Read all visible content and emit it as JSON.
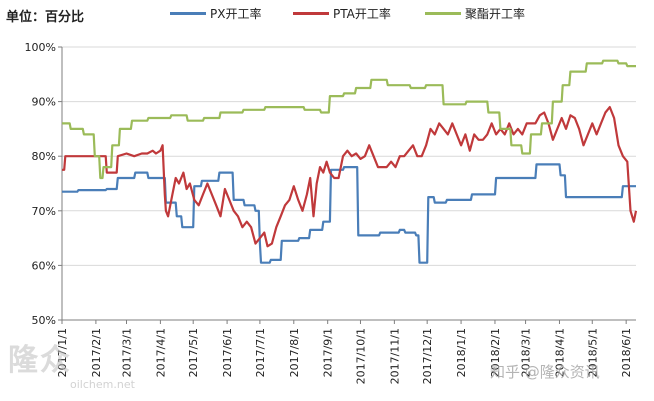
{
  "unit_label": "单位：百分比",
  "watermark": {
    "left_logo": "隆众",
    "left_url": "oilchem.net",
    "right": "知乎 @隆众资讯"
  },
  "colors": {
    "PX": "#4a7eb8",
    "PTA": "#c0393b",
    "POLY": "#9bbb59",
    "axis": "#7f7f7f"
  },
  "chart_data": {
    "type": "line",
    "title": "",
    "xlabel": "",
    "ylabel": "",
    "ylim": [
      50,
      100
    ],
    "yticks": [
      50,
      60,
      70,
      80,
      90,
      100
    ],
    "ytick_labels": [
      "50%",
      "60%",
      "70%",
      "80%",
      "90%",
      "100%"
    ],
    "xlim": [
      "2017-01-01",
      "2018-06-10"
    ],
    "xtick_labels": [
      "2017/1/1",
      "2017/2/1",
      "2017/3/1",
      "2017/4/1",
      "2017/5/1",
      "2017/6/1",
      "2017/7/1",
      "2017/8/1",
      "2017/9/1",
      "2017/10/1",
      "2017/11/1",
      "2017/12/1",
      "2018/1/1",
      "2018/2/1",
      "2018/3/1",
      "2018/4/1",
      "2018/5/1",
      "2018/6/1"
    ],
    "xtick_dates": [
      "2017-01-01",
      "2017-02-01",
      "2017-03-01",
      "2017-04-01",
      "2017-05-01",
      "2017-06-01",
      "2017-07-01",
      "2017-08-01",
      "2017-09-01",
      "2017-10-01",
      "2017-11-01",
      "2017-12-01",
      "2018-01-01",
      "2018-02-01",
      "2018-03-01",
      "2018-04-01",
      "2018-05-01",
      "2018-06-01"
    ],
    "legend_position": "top",
    "series": [
      {
        "name": "PX开工率",
        "color": "#4a7eb8",
        "x": [
          "2017-01-01",
          "2017-01-15",
          "2017-01-16",
          "2017-02-10",
          "2017-02-11",
          "2017-02-20",
          "2017-02-21",
          "2017-03-08",
          "2017-03-09",
          "2017-03-20",
          "2017-03-21",
          "2017-04-05",
          "2017-04-06",
          "2017-04-15",
          "2017-04-16",
          "2017-04-20",
          "2017-04-21",
          "2017-05-01",
          "2017-05-02",
          "2017-05-08",
          "2017-05-09",
          "2017-05-24",
          "2017-05-25",
          "2017-06-06",
          "2017-06-07",
          "2017-06-16",
          "2017-06-17",
          "2017-06-26",
          "2017-06-27",
          "2017-06-30",
          "2017-07-01",
          "2017-07-02",
          "2017-07-10",
          "2017-07-11",
          "2017-07-20",
          "2017-07-21",
          "2017-08-05",
          "2017-08-06",
          "2017-08-15",
          "2017-08-16",
          "2017-08-27",
          "2017-08-28",
          "2017-09-03",
          "2017-09-04",
          "2017-09-15",
          "2017-09-16",
          "2017-09-28",
          "2017-09-29",
          "2017-10-18",
          "2017-10-19",
          "2017-11-05",
          "2017-11-06",
          "2017-11-10",
          "2017-11-11",
          "2017-11-20",
          "2017-11-21",
          "2017-11-23",
          "2017-11-24",
          "2017-12-01",
          "2017-12-02",
          "2017-12-07",
          "2017-12-08",
          "2017-12-18",
          "2017-12-19",
          "2018-01-10",
          "2018-01-11",
          "2018-02-01",
          "2018-02-02",
          "2018-03-10",
          "2018-03-11",
          "2018-04-01",
          "2018-04-02",
          "2018-04-06",
          "2018-04-07",
          "2018-05-28",
          "2018-05-29",
          "2018-06-10"
        ],
        "values": [
          73.5,
          73.5,
          73.8,
          73.8,
          74.0,
          74.0,
          76.0,
          76.0,
          77.0,
          77.0,
          76.0,
          76.0,
          71.5,
          71.5,
          69.0,
          69.0,
          67.0,
          67.0,
          74.5,
          74.5,
          75.5,
          75.5,
          77.0,
          77.0,
          72.0,
          72.0,
          71.0,
          71.0,
          70.0,
          70.0,
          64.0,
          60.5,
          60.5,
          61.0,
          61.0,
          64.5,
          64.5,
          65.0,
          65.0,
          66.5,
          66.5,
          68.0,
          68.0,
          77.5,
          77.5,
          78.0,
          78.0,
          65.5,
          65.5,
          66.0,
          66.0,
          66.5,
          66.5,
          66.0,
          66.0,
          65.5,
          65.5,
          60.5,
          60.5,
          72.5,
          72.5,
          71.5,
          71.5,
          72.0,
          72.0,
          73.0,
          73.0,
          76.0,
          76.0,
          78.5,
          78.5,
          76.5,
          76.5,
          72.5,
          72.5,
          74.5,
          74.5
        ]
      },
      {
        "name": "PTA开工率",
        "color": "#c0393b",
        "x": [
          "2017-01-01",
          "2017-01-03",
          "2017-01-04",
          "2017-01-25",
          "2017-01-26",
          "2017-02-02",
          "2017-02-10",
          "2017-02-11",
          "2017-02-20",
          "2017-02-21",
          "2017-03-01",
          "2017-03-08",
          "2017-03-15",
          "2017-03-20",
          "2017-03-25",
          "2017-03-28",
          "2017-04-01",
          "2017-04-03",
          "2017-04-05",
          "2017-04-06",
          "2017-04-08",
          "2017-04-12",
          "2017-04-15",
          "2017-04-18",
          "2017-04-22",
          "2017-04-25",
          "2017-04-28",
          "2017-05-02",
          "2017-05-06",
          "2017-05-10",
          "2017-05-14",
          "2017-05-18",
          "2017-05-22",
          "2017-05-26",
          "2017-05-30",
          "2017-06-03",
          "2017-06-07",
          "2017-06-11",
          "2017-06-15",
          "2017-06-19",
          "2017-06-23",
          "2017-06-27",
          "2017-07-01",
          "2017-07-05",
          "2017-07-08",
          "2017-07-12",
          "2017-07-16",
          "2017-07-20",
          "2017-07-24",
          "2017-07-28",
          "2017-08-01",
          "2017-08-05",
          "2017-08-09",
          "2017-08-13",
          "2017-08-16",
          "2017-08-19",
          "2017-08-22",
          "2017-08-25",
          "2017-08-28",
          "2017-08-31",
          "2017-09-03",
          "2017-09-07",
          "2017-09-11",
          "2017-09-15",
          "2017-09-19",
          "2017-09-23",
          "2017-09-27",
          "2017-10-01",
          "2017-10-05",
          "2017-10-09",
          "2017-10-13",
          "2017-10-17",
          "2017-10-21",
          "2017-10-25",
          "2017-10-29",
          "2017-11-02",
          "2017-11-06",
          "2017-11-10",
          "2017-11-14",
          "2017-11-18",
          "2017-11-22",
          "2017-11-26",
          "2017-11-30",
          "2017-12-04",
          "2017-12-08",
          "2017-12-12",
          "2017-12-16",
          "2017-12-20",
          "2017-12-24",
          "2017-12-28",
          "2018-01-01",
          "2018-01-05",
          "2018-01-09",
          "2018-01-13",
          "2018-01-17",
          "2018-01-21",
          "2018-01-25",
          "2018-01-29",
          "2018-02-02",
          "2018-02-06",
          "2018-02-10",
          "2018-02-14",
          "2018-02-18",
          "2018-02-22",
          "2018-02-26",
          "2018-03-02",
          "2018-03-06",
          "2018-03-10",
          "2018-03-14",
          "2018-03-18",
          "2018-03-22",
          "2018-03-26",
          "2018-03-30",
          "2018-04-03",
          "2018-04-07",
          "2018-04-11",
          "2018-04-15",
          "2018-04-19",
          "2018-04-23",
          "2018-04-27",
          "2018-05-01",
          "2018-05-05",
          "2018-05-09",
          "2018-05-13",
          "2018-05-17",
          "2018-05-21",
          "2018-05-25",
          "2018-05-29",
          "2018-06-02",
          "2018-06-05",
          "2018-06-08",
          "2018-06-10"
        ],
        "values": [
          77.5,
          77.5,
          80.0,
          80.0,
          80.0,
          80.0,
          80.0,
          77.0,
          77.0,
          80.0,
          80.5,
          80.0,
          80.5,
          80.5,
          81.0,
          80.5,
          81.0,
          82.0,
          73.0,
          70.0,
          69.0,
          73.0,
          76.0,
          75.0,
          77.0,
          74.0,
          75.0,
          72.0,
          71.0,
          73.0,
          75.0,
          73.0,
          71.0,
          69.0,
          74.0,
          72.0,
          70.0,
          69.0,
          67.0,
          68.0,
          67.0,
          64.0,
          65.0,
          66.0,
          63.5,
          64.0,
          67.0,
          69.0,
          71.0,
          72.0,
          74.5,
          72.0,
          70.0,
          73.0,
          76.0,
          69.0,
          75.0,
          78.0,
          77.0,
          79.0,
          77.0,
          76.0,
          76.0,
          80.0,
          81.0,
          80.0,
          80.5,
          79.5,
          80.0,
          82.0,
          80.0,
          78.0,
          78.0,
          78.0,
          79.0,
          78.0,
          80.0,
          80.0,
          81.0,
          82.0,
          80.0,
          80.0,
          82.0,
          85.0,
          84.0,
          86.0,
          85.0,
          84.0,
          86.0,
          84.0,
          82.0,
          84.0,
          81.0,
          84.0,
          83.0,
          83.0,
          84.0,
          86.0,
          84.0,
          85.0,
          84.0,
          86.0,
          84.0,
          85.0,
          84.0,
          86.0,
          86.0,
          86.0,
          87.5,
          88.0,
          86.0,
          83.0,
          85.0,
          87.0,
          85.0,
          87.5,
          87.0,
          85.0,
          82.0,
          84.0,
          86.0,
          84.0,
          86.0,
          88.0,
          89.0,
          87.0,
          82.0,
          80.0,
          79.0,
          70.0,
          68.0,
          70.0
        ]
      },
      {
        "name": "聚酯开工率",
        "color": "#9bbb59",
        "x": [
          "2017-01-01",
          "2017-01-08",
          "2017-01-09",
          "2017-01-20",
          "2017-01-21",
          "2017-01-30",
          "2017-01-31",
          "2017-02-04",
          "2017-02-05",
          "2017-02-07",
          "2017-02-08",
          "2017-02-15",
          "2017-02-16",
          "2017-02-22",
          "2017-02-23",
          "2017-03-05",
          "2017-03-06",
          "2017-03-20",
          "2017-03-21",
          "2017-04-10",
          "2017-04-11",
          "2017-04-25",
          "2017-04-26",
          "2017-05-10",
          "2017-05-11",
          "2017-05-25",
          "2017-05-26",
          "2017-06-15",
          "2017-06-16",
          "2017-07-05",
          "2017-07-06",
          "2017-08-10",
          "2017-08-11",
          "2017-08-25",
          "2017-08-26",
          "2017-09-02",
          "2017-09-03",
          "2017-09-15",
          "2017-09-16",
          "2017-09-26",
          "2017-09-27",
          "2017-10-10",
          "2017-10-11",
          "2017-10-25",
          "2017-10-26",
          "2017-11-15",
          "2017-11-16",
          "2017-11-29",
          "2017-11-30",
          "2017-12-15",
          "2017-12-16",
          "2018-01-05",
          "2018-01-06",
          "2018-01-25",
          "2018-01-26",
          "2018-02-05",
          "2018-02-06",
          "2018-02-15",
          "2018-02-16",
          "2018-02-25",
          "2018-02-26",
          "2018-03-05",
          "2018-03-06",
          "2018-03-15",
          "2018-03-16",
          "2018-03-25",
          "2018-03-26",
          "2018-04-03",
          "2018-04-04",
          "2018-04-10",
          "2018-04-11",
          "2018-04-25",
          "2018-04-26",
          "2018-05-10",
          "2018-05-11",
          "2018-05-24",
          "2018-05-25",
          "2018-06-01",
          "2018-06-02",
          "2018-06-10"
        ],
        "values": [
          86.0,
          86.0,
          85.0,
          85.0,
          84.0,
          84.0,
          80.0,
          80.0,
          76.0,
          76.0,
          78.0,
          78.0,
          82.0,
          82.0,
          85.0,
          85.0,
          86.5,
          86.5,
          87.0,
          87.0,
          87.5,
          87.5,
          86.5,
          86.5,
          87.0,
          87.0,
          88.0,
          88.0,
          88.5,
          88.5,
          89.0,
          89.0,
          88.5,
          88.5,
          88.0,
          88.0,
          91.0,
          91.0,
          91.5,
          91.5,
          92.5,
          92.5,
          94.0,
          94.0,
          93.0,
          93.0,
          92.5,
          92.5,
          93.0,
          93.0,
          89.5,
          89.5,
          90.0,
          90.0,
          88.0,
          88.0,
          85.0,
          85.0,
          82.0,
          82.0,
          80.5,
          80.5,
          84.0,
          84.0,
          86.0,
          86.0,
          90.0,
          90.0,
          93.0,
          93.0,
          95.5,
          95.5,
          97.0,
          97.0,
          97.5,
          97.5,
          97.0,
          97.0,
          96.5,
          96.5
        ]
      }
    ]
  }
}
